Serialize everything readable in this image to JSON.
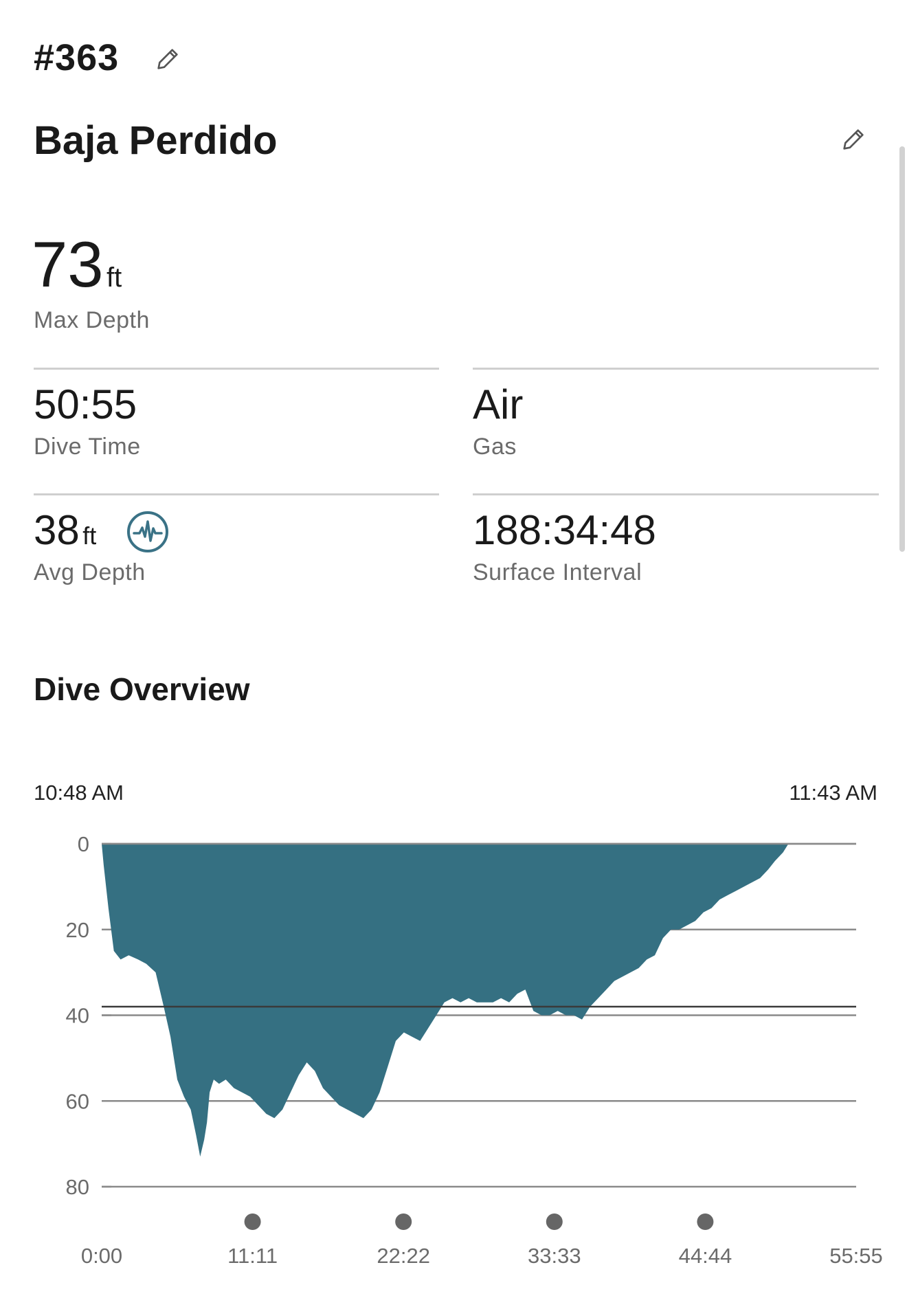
{
  "dive": {
    "number": "#363",
    "site": "Baja Perdido",
    "max_depth": {
      "value": "73",
      "unit": "ft",
      "label": "Max Depth"
    },
    "dive_time": {
      "value": "50:55",
      "label": "Dive Time"
    },
    "gas": {
      "value": "Air",
      "label": "Gas"
    },
    "avg_depth": {
      "value": "38",
      "unit": "ft",
      "label": "Avg Depth"
    },
    "surface_interval": {
      "value": "188:34:48",
      "label": "Surface Interval"
    }
  },
  "icons": {
    "edit_number": "pencil-icon",
    "edit_site": "pencil-icon",
    "avg_depth_info": "waveform-icon"
  },
  "overview": {
    "title": "Dive Overview",
    "start_time": "10:48 AM",
    "end_time": "11:43 AM"
  },
  "colors": {
    "profile_fill": "#357082",
    "accent_icon": "#3a7286"
  },
  "chart_data": {
    "type": "area",
    "title": "",
    "xlabel": "",
    "ylabel": "",
    "x_unit": "minutes",
    "y_unit": "ft",
    "xlim": [
      0,
      55.92
    ],
    "ylim": [
      0,
      80
    ],
    "y_inverted": true,
    "y_ticks": [
      "0",
      "20",
      "40",
      "60",
      "80"
    ],
    "x_ticks": [
      "0:00",
      "11:11",
      "22:22",
      "33:33",
      "44:44",
      "55:55"
    ],
    "reference_line_y": 38,
    "series": [
      {
        "x": [
          0,
          0.15,
          0.5,
          0.9,
          1.4,
          2.0,
          2.7,
          3.3,
          4.0,
          4.6,
          5.1,
          5.6,
          6.1,
          6.6,
          7.0,
          7.3,
          7.6,
          7.8,
          8.0,
          8.3,
          8.7,
          9.2,
          9.8,
          10.4,
          11.0,
          11.6,
          12.2,
          12.8,
          13.4,
          14.0,
          14.6,
          15.2,
          15.8,
          16.4,
          17.0,
          17.6,
          18.2,
          18.8,
          19.4,
          20.0,
          20.6,
          21.2,
          21.8,
          22.4,
          23.0,
          23.6,
          24.2,
          24.8,
          25.4,
          26.0,
          26.6,
          27.2,
          27.8,
          28.4,
          29.0,
          29.6,
          30.2,
          30.8,
          31.4,
          32.0,
          32.6,
          33.2,
          33.8,
          34.4,
          35.0,
          35.6,
          36.2,
          36.8,
          37.4,
          38.0,
          38.6,
          39.2,
          39.8,
          40.4,
          41.0,
          41.6,
          42.2,
          42.8,
          43.4,
          44.0,
          44.6,
          45.2,
          45.8,
          46.4,
          47.0,
          47.6,
          48.2,
          48.8,
          49.4,
          49.9,
          50.2,
          50.5,
          50.7,
          50.9,
          51.0
        ],
        "y": [
          0,
          5,
          15,
          25,
          27,
          26,
          27,
          28,
          30,
          38,
          45,
          55,
          59,
          62,
          68,
          73,
          69,
          65,
          58,
          55,
          56,
          55,
          57,
          58,
          59,
          61,
          63,
          64,
          62,
          58,
          54,
          51,
          53,
          57,
          59,
          61,
          62,
          63,
          64,
          62,
          58,
          52,
          46,
          44,
          45,
          46,
          43,
          40,
          37,
          36,
          37,
          36,
          37,
          37,
          37,
          36,
          37,
          35,
          34,
          39,
          40,
          40,
          39,
          40,
          40,
          41,
          38,
          36,
          34,
          32,
          31,
          30,
          29,
          27,
          26,
          22,
          20,
          20,
          19,
          18,
          16,
          15,
          13,
          12,
          11,
          10,
          9,
          8,
          6,
          4,
          3,
          2,
          1,
          0,
          0
        ]
      }
    ]
  }
}
